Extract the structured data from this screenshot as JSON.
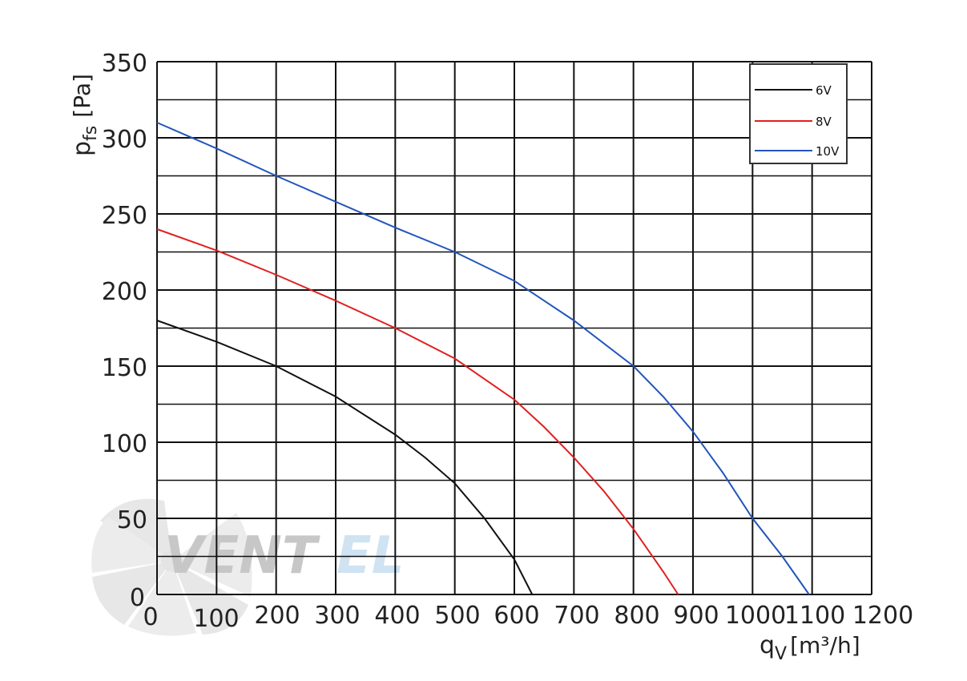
{
  "chart_data": {
    "type": "line",
    "xlabel": "q",
    "xlabel_sub": "V",
    "xlabel_unit": "[m³/h]",
    "ylabel": "p",
    "ylabel_sub": "fs",
    "ylabel_unit": "[Pa]",
    "xlim": [
      0,
      1200
    ],
    "ylim": [
      0,
      350
    ],
    "x_ticks": [
      "0",
      "100",
      "200",
      "300",
      "400",
      "500",
      "600",
      "700",
      "800",
      "900",
      "1000",
      "1100",
      "1200"
    ],
    "y_ticks": [
      "0",
      "50",
      "100",
      "150",
      "200",
      "250",
      "300",
      "350"
    ],
    "grid": true,
    "legend_position": "top-right",
    "series": [
      {
        "name": "6V",
        "color": "#111111",
        "x": [
          0,
          100,
          200,
          300,
          400,
          450,
          500,
          550,
          600,
          630
        ],
        "y": [
          180,
          166,
          150,
          130,
          105,
          90,
          73,
          50,
          23,
          0
        ]
      },
      {
        "name": "8V",
        "color": "#e02020",
        "x": [
          0,
          100,
          200,
          300,
          400,
          500,
          600,
          650,
          700,
          750,
          800,
          850,
          875
        ],
        "y": [
          240,
          226,
          210,
          193,
          175,
          155,
          128,
          110,
          90,
          68,
          43,
          15,
          0
        ]
      },
      {
        "name": "10V",
        "color": "#2255bb",
        "x": [
          0,
          100,
          200,
          300,
          400,
          500,
          600,
          700,
          800,
          850,
          900,
          950,
          1000,
          1050,
          1095
        ],
        "y": [
          310,
          293,
          275,
          258,
          241,
          225,
          206,
          180,
          150,
          130,
          107,
          80,
          50,
          25,
          0
        ]
      }
    ]
  },
  "watermark": {
    "text_dark": "VENT",
    "text_light": "EL",
    "icon": "fan-icon"
  }
}
